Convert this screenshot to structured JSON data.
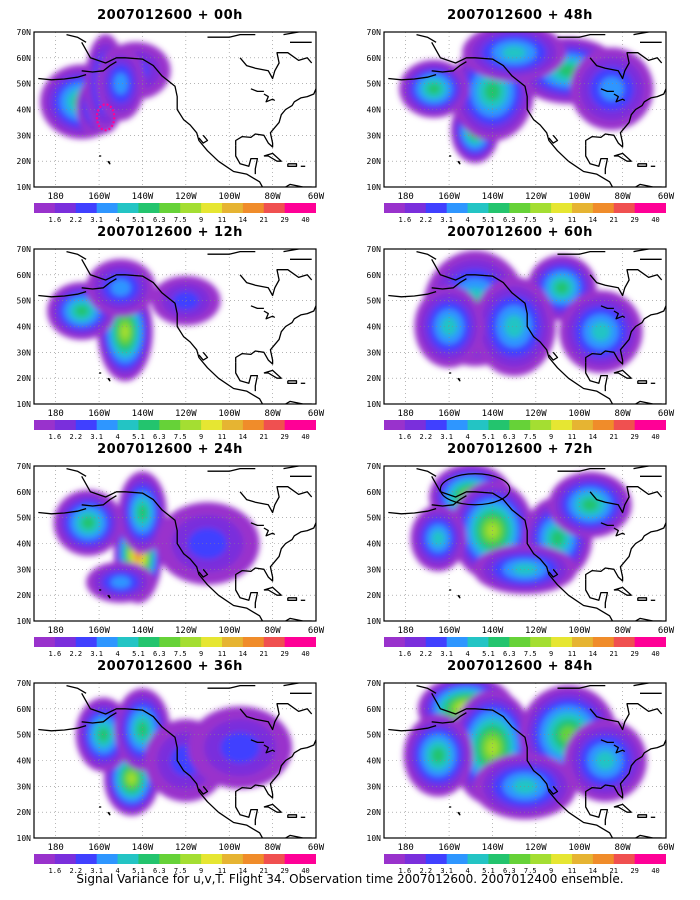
{
  "chart_data": [
    {
      "type": "heatmap",
      "title": "2007012600 + 00h",
      "lead_hours": 0,
      "xlabel": "",
      "ylabel": "",
      "blobs": [
        [
          -168,
          43,
          12,
          9,
          0.4
        ],
        [
          -161,
          41,
          6,
          7,
          0.3
        ],
        [
          -157,
          50,
          6,
          12,
          0.35
        ],
        [
          -143,
          55,
          10,
          7,
          0.15
        ],
        [
          -150,
          50,
          7,
          9,
          0.22
        ]
      ],
      "ring": [
        -157,
        37,
        4,
        5
      ]
    },
    {
      "type": "heatmap",
      "title": "2007012600 + 12h",
      "lead_hours": 12,
      "xlabel": "",
      "ylabel": "",
      "blobs": [
        [
          -148,
          38,
          8,
          12,
          0.6
        ],
        [
          -168,
          46,
          10,
          7,
          0.4
        ],
        [
          -150,
          55,
          10,
          7,
          0.25
        ],
        [
          -120,
          50,
          10,
          6,
          0.15
        ]
      ]
    },
    {
      "type": "heatmap",
      "title": "2007012600 + 24h",
      "lead_hours": 24,
      "xlabel": "",
      "ylabel": "",
      "blobs": [
        [
          -142,
          36,
          7,
          12,
          0.85
        ],
        [
          -140,
          52,
          7,
          10,
          0.45
        ],
        [
          -165,
          48,
          10,
          8,
          0.4
        ],
        [
          -110,
          40,
          15,
          10,
          0.15
        ],
        [
          -150,
          25,
          10,
          5,
          0.25
        ]
      ]
    },
    {
      "type": "heatmap",
      "title": "2007012600 + 36h",
      "lead_hours": 36,
      "xlabel": "",
      "ylabel": "",
      "blobs": [
        [
          -145,
          33,
          8,
          9,
          0.55
        ],
        [
          -158,
          50,
          8,
          9,
          0.4
        ],
        [
          -140,
          52,
          8,
          10,
          0.45
        ],
        [
          -120,
          40,
          12,
          10,
          0.2
        ],
        [
          -95,
          45,
          15,
          10,
          0.15
        ]
      ]
    },
    {
      "type": "heatmap",
      "title": "2007012600 + 48h",
      "lead_hours": 48,
      "xlabel": "",
      "ylabel": "",
      "blobs": [
        [
          -148,
          32,
          7,
          8,
          0.5
        ],
        [
          -140,
          47,
          12,
          12,
          0.45
        ],
        [
          -167,
          48,
          10,
          7,
          0.4
        ],
        [
          -105,
          55,
          15,
          8,
          0.4
        ],
        [
          -130,
          62,
          15,
          7,
          0.3
        ],
        [
          -85,
          48,
          12,
          10,
          0.25
        ]
      ]
    },
    {
      "type": "heatmap",
      "title": "2007012600 + 60h",
      "lead_hours": 60,
      "xlabel": "",
      "ylabel": "",
      "blobs": [
        [
          -148,
          47,
          15,
          14,
          0.45
        ],
        [
          -108,
          55,
          10,
          8,
          0.45
        ],
        [
          -130,
          40,
          12,
          12,
          0.35
        ],
        [
          -90,
          38,
          12,
          10,
          0.3
        ],
        [
          -160,
          40,
          10,
          10,
          0.3
        ]
      ]
    },
    {
      "type": "heatmap",
      "title": "2007012600 + 72h",
      "lead_hours": 72,
      "xlabel": "",
      "ylabel": "",
      "blobs": [
        [
          -150,
          58,
          12,
          8,
          0.6
        ],
        [
          -140,
          45,
          12,
          12,
          0.55
        ],
        [
          -110,
          42,
          10,
          10,
          0.45
        ],
        [
          -95,
          55,
          12,
          8,
          0.4
        ],
        [
          -165,
          42,
          8,
          8,
          0.35
        ],
        [
          -125,
          30,
          15,
          6,
          0.3
        ]
      ],
      "ellipse": [
        -148,
        61,
        16,
        6
      ]
    },
    {
      "type": "heatmap",
      "title": "2007012600 + 84h",
      "lead_hours": 84,
      "xlabel": "",
      "ylabel": "",
      "blobs": [
        [
          -152,
          60,
          14,
          8,
          0.7
        ],
        [
          -140,
          45,
          12,
          14,
          0.55
        ],
        [
          -105,
          50,
          14,
          12,
          0.5
        ],
        [
          -165,
          42,
          10,
          10,
          0.45
        ],
        [
          -88,
          40,
          12,
          10,
          0.35
        ],
        [
          -125,
          30,
          15,
          8,
          0.35
        ]
      ]
    }
  ],
  "x_ticks": [
    "180",
    "160W",
    "140W",
    "120W",
    "100W",
    "80W",
    "60W"
  ],
  "y_ticks": [
    "10N",
    "20N",
    "30N",
    "40N",
    "50N",
    "60N",
    "70N"
  ],
  "colorbar": {
    "labels": [
      "1.6",
      "2.2",
      "3.1",
      "4",
      "5.1",
      "6.3",
      "7.5",
      "9",
      "11",
      "14",
      "21",
      "29",
      "40"
    ],
    "colors": [
      "#9932cc",
      "#7a2fdc",
      "#4040ff",
      "#2e96ff",
      "#23c4c4",
      "#23c46e",
      "#66d238",
      "#a4de32",
      "#e6e632",
      "#e6b432",
      "#f08c2a",
      "#f05050",
      "#ff0096"
    ]
  },
  "caption": "Signal Variance for u,v,T. Flight 34. Observation time 2007012600. 2007012400 ensemble."
}
